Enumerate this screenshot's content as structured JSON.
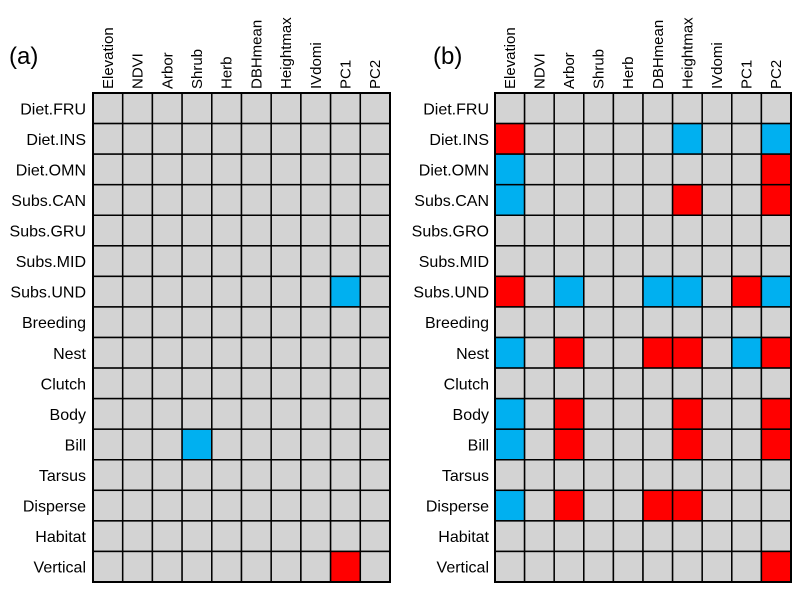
{
  "chart_data": [
    {
      "type": "heatmap",
      "title": "(a)",
      "columns": [
        "Elevation",
        "NDVI",
        "Arbor",
        "Shrub",
        "Herb",
        "DBHmean",
        "Heightmax",
        "IVdomi",
        "PC1",
        "PC2"
      ],
      "rows": [
        "Diet.FRU",
        "Diet.INS",
        "Diet.OMN",
        "Subs.CAN",
        "Subs.GRU",
        "Subs.MID",
        "Subs.UND",
        "Breeding",
        "Nest",
        "Clutch",
        "Body",
        "Bill",
        "Tarsus",
        "Disperse",
        "Habitat",
        "Vertical"
      ],
      "values": [
        [
          0,
          0,
          0,
          0,
          0,
          0,
          0,
          0,
          0,
          0
        ],
        [
          0,
          0,
          0,
          0,
          0,
          0,
          0,
          0,
          0,
          0
        ],
        [
          0,
          0,
          0,
          0,
          0,
          0,
          0,
          0,
          0,
          0
        ],
        [
          0,
          0,
          0,
          0,
          0,
          0,
          0,
          0,
          0,
          0
        ],
        [
          0,
          0,
          0,
          0,
          0,
          0,
          0,
          0,
          0,
          0
        ],
        [
          0,
          0,
          0,
          0,
          0,
          0,
          0,
          0,
          0,
          0
        ],
        [
          0,
          0,
          0,
          0,
          0,
          0,
          0,
          0,
          -1,
          0
        ],
        [
          0,
          0,
          0,
          0,
          0,
          0,
          0,
          0,
          0,
          0
        ],
        [
          0,
          0,
          0,
          0,
          0,
          0,
          0,
          0,
          0,
          0
        ],
        [
          0,
          0,
          0,
          0,
          0,
          0,
          0,
          0,
          0,
          0
        ],
        [
          0,
          0,
          0,
          0,
          0,
          0,
          0,
          0,
          0,
          0
        ],
        [
          0,
          0,
          0,
          -1,
          0,
          0,
          0,
          0,
          0,
          0
        ],
        [
          0,
          0,
          0,
          0,
          0,
          0,
          0,
          0,
          0,
          0
        ],
        [
          0,
          0,
          0,
          0,
          0,
          0,
          0,
          0,
          0,
          0
        ],
        [
          0,
          0,
          0,
          0,
          0,
          0,
          0,
          0,
          0,
          0
        ],
        [
          0,
          0,
          0,
          0,
          0,
          0,
          0,
          0,
          1,
          0
        ]
      ]
    },
    {
      "type": "heatmap",
      "title": "(b)",
      "columns": [
        "Elevation",
        "NDVI",
        "Arbor",
        "Shrub",
        "Herb",
        "DBHmean",
        "Heightmax",
        "IVdomi",
        "PC1",
        "PC2"
      ],
      "rows": [
        "Diet.FRU",
        "Diet.INS",
        "Diet.OMN",
        "Subs.CAN",
        "Subs.GRO",
        "Subs.MID",
        "Subs.UND",
        "Breeding",
        "Nest",
        "Clutch",
        "Body",
        "Bill",
        "Tarsus",
        "Disperse",
        "Habitat",
        "Vertical"
      ],
      "values": [
        [
          0,
          0,
          0,
          0,
          0,
          0,
          0,
          0,
          0,
          0
        ],
        [
          1,
          0,
          0,
          0,
          0,
          0,
          -1,
          0,
          0,
          -1
        ],
        [
          -1,
          0,
          0,
          0,
          0,
          0,
          0,
          0,
          0,
          1
        ],
        [
          -1,
          0,
          0,
          0,
          0,
          0,
          1,
          0,
          0,
          1
        ],
        [
          0,
          0,
          0,
          0,
          0,
          0,
          0,
          0,
          0,
          0
        ],
        [
          0,
          0,
          0,
          0,
          0,
          0,
          0,
          0,
          0,
          0
        ],
        [
          1,
          0,
          -1,
          0,
          0,
          -1,
          -1,
          0,
          1,
          -1
        ],
        [
          0,
          0,
          0,
          0,
          0,
          0,
          0,
          0,
          0,
          0
        ],
        [
          -1,
          0,
          1,
          0,
          0,
          1,
          1,
          0,
          -1,
          1
        ],
        [
          0,
          0,
          0,
          0,
          0,
          0,
          0,
          0,
          0,
          0
        ],
        [
          -1,
          0,
          1,
          0,
          0,
          0,
          1,
          0,
          0,
          1
        ],
        [
          -1,
          0,
          1,
          0,
          0,
          0,
          1,
          0,
          0,
          1
        ],
        [
          0,
          0,
          0,
          0,
          0,
          0,
          0,
          0,
          0,
          0
        ],
        [
          -1,
          0,
          1,
          0,
          0,
          1,
          1,
          0,
          0,
          0
        ],
        [
          0,
          0,
          0,
          0,
          0,
          0,
          0,
          0,
          0,
          0
        ],
        [
          0,
          0,
          0,
          0,
          0,
          0,
          0,
          0,
          0,
          1
        ]
      ]
    }
  ],
  "colors": {
    "neutral": "#d3d3d3",
    "positive": "#ff0000",
    "negative": "#00b0f0",
    "border": "#000000",
    "text": "#000000"
  }
}
